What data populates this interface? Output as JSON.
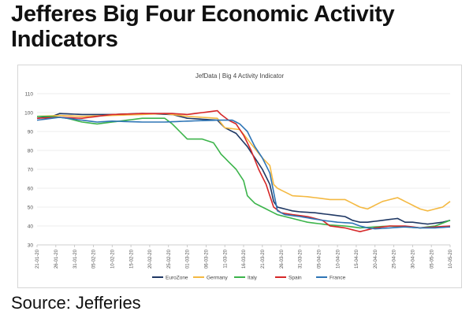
{
  "headline": "Jefferes Big Four Economic Activity Indicators",
  "source": "Source: Jefferies",
  "chart_data": {
    "type": "line",
    "title": "JefData | Big 4 Activity Indicator",
    "xlabel": "",
    "ylabel": "",
    "ylim": [
      30,
      110
    ],
    "yticks": [
      30,
      40,
      50,
      60,
      70,
      80,
      90,
      100,
      110
    ],
    "grid": true,
    "legend_position": "bottom",
    "x": [
      "21-01-20",
      "22-01-20",
      "23-01-20",
      "24-01-20",
      "25-01-20",
      "26-01-20",
      "27-01-20",
      "28-01-20",
      "29-01-20",
      "30-01-20",
      "31-01-20",
      "01-02-20",
      "02-02-20",
      "03-02-20",
      "04-02-20",
      "05-02-20",
      "06-02-20",
      "07-02-20",
      "08-02-20",
      "09-02-20",
      "10-02-20",
      "11-02-20",
      "12-02-20",
      "13-02-20",
      "14-02-20",
      "15-02-20",
      "16-02-20",
      "17-02-20",
      "18-02-20",
      "19-02-20",
      "20-02-20",
      "21-02-20",
      "22-02-20",
      "23-02-20",
      "24-02-20",
      "25-02-20",
      "26-02-20",
      "27-02-20",
      "28-02-20",
      "29-02-20",
      "01-03-20",
      "02-03-20",
      "03-03-20",
      "04-03-20",
      "05-03-20",
      "06-03-20",
      "07-03-20",
      "08-03-20",
      "09-03-20",
      "10-03-20",
      "11-03-20",
      "12-03-20",
      "13-03-20",
      "14-03-20",
      "15-03-20",
      "16-03-20",
      "17-03-20",
      "18-03-20",
      "19-03-20",
      "20-03-20",
      "21-03-20",
      "22-03-20",
      "23-03-20",
      "24-03-20",
      "25-03-20",
      "26-03-20",
      "27-03-20",
      "28-03-20",
      "29-03-20",
      "30-03-20",
      "31-03-20",
      "01-04-20",
      "02-04-20",
      "03-04-20",
      "04-04-20",
      "05-04-20",
      "06-04-20",
      "07-04-20",
      "08-04-20",
      "09-04-20",
      "10-04-20",
      "11-04-20",
      "12-04-20",
      "13-04-20",
      "14-04-20",
      "15-04-20",
      "16-04-20",
      "17-04-20",
      "18-04-20",
      "19-04-20",
      "20-04-20",
      "21-04-20",
      "22-04-20",
      "23-04-20",
      "24-04-20",
      "25-04-20",
      "26-04-20",
      "27-04-20",
      "28-04-20",
      "29-04-20",
      "30-04-20",
      "01-05-20",
      "02-05-20",
      "03-05-20",
      "04-05-20",
      "05-05-20",
      "06-05-20",
      "07-05-20",
      "08-05-20",
      "09-05-20",
      "10-05-20"
    ],
    "xticks": [
      "21-01-20",
      "26-01-20",
      "31-01-20",
      "05-02-20",
      "10-02-20",
      "15-02-20",
      "20-02-20",
      "25-02-20",
      "01-03-20",
      "06-03-20",
      "11-03-20",
      "16-03-20",
      "21-03-20",
      "26-03-20",
      "31-03-20",
      "05-04-20",
      "10-04-20",
      "15-04-20",
      "20-04-20",
      "25-04-20",
      "30-04-20",
      "05-05-20",
      "10-05-20"
    ],
    "series": [
      {
        "name": "EuroZone",
        "color": "#1f3864",
        "keypoints": [
          [
            0,
            97
          ],
          [
            4,
            98
          ],
          [
            6,
            99.5
          ],
          [
            12,
            99
          ],
          [
            20,
            99
          ],
          [
            28,
            99.5
          ],
          [
            36,
            99
          ],
          [
            40,
            97
          ],
          [
            48,
            96
          ],
          [
            50,
            92
          ],
          [
            53,
            89
          ],
          [
            56,
            82
          ],
          [
            60,
            70
          ],
          [
            62,
            62
          ],
          [
            63,
            53
          ],
          [
            64,
            50
          ],
          [
            66,
            49
          ],
          [
            68,
            48
          ],
          [
            70,
            47.5
          ],
          [
            74,
            47
          ],
          [
            78,
            46
          ],
          [
            82,
            45
          ],
          [
            84,
            43
          ],
          [
            86,
            42
          ],
          [
            88,
            42
          ],
          [
            92,
            43
          ],
          [
            96,
            44
          ],
          [
            98,
            42
          ],
          [
            100,
            42
          ],
          [
            104,
            41
          ],
          [
            108,
            42
          ],
          [
            110,
            43
          ]
        ]
      },
      {
        "name": "Germany",
        "color": "#f4b942",
        "keypoints": [
          [
            0,
            98
          ],
          [
            6,
            98.5
          ],
          [
            12,
            98
          ],
          [
            20,
            98.5
          ],
          [
            28,
            99
          ],
          [
            34,
            99.5
          ],
          [
            40,
            98
          ],
          [
            48,
            97
          ],
          [
            50,
            92
          ],
          [
            54,
            91
          ],
          [
            56,
            86
          ],
          [
            60,
            76
          ],
          [
            62,
            72
          ],
          [
            63,
            62
          ],
          [
            64,
            60
          ],
          [
            66,
            58
          ],
          [
            68,
            56
          ],
          [
            72,
            55.5
          ],
          [
            78,
            54
          ],
          [
            82,
            54
          ],
          [
            84,
            52
          ],
          [
            86,
            50
          ],
          [
            88,
            49
          ],
          [
            90,
            51
          ],
          [
            92,
            53
          ],
          [
            94,
            54
          ],
          [
            96,
            55
          ],
          [
            98,
            53
          ],
          [
            100,
            51
          ],
          [
            102,
            49
          ],
          [
            104,
            48
          ],
          [
            106,
            49
          ],
          [
            108,
            50
          ],
          [
            110,
            53
          ]
        ]
      },
      {
        "name": "Italy",
        "color": "#3cb44b",
        "keypoints": [
          [
            0,
            98
          ],
          [
            4,
            98
          ],
          [
            8,
            97
          ],
          [
            12,
            95
          ],
          [
            16,
            94
          ],
          [
            20,
            95
          ],
          [
            28,
            97
          ],
          [
            34,
            97
          ],
          [
            36,
            94
          ],
          [
            38,
            90
          ],
          [
            40,
            86
          ],
          [
            44,
            86
          ],
          [
            47,
            84
          ],
          [
            49,
            78
          ],
          [
            51,
            74
          ],
          [
            53,
            70
          ],
          [
            55,
            64
          ],
          [
            56,
            56
          ],
          [
            58,
            52
          ],
          [
            60,
            50
          ],
          [
            62,
            48
          ],
          [
            64,
            46
          ],
          [
            68,
            44
          ],
          [
            72,
            42
          ],
          [
            78,
            40.5
          ],
          [
            82,
            40
          ],
          [
            86,
            39
          ],
          [
            90,
            39.5
          ],
          [
            94,
            40
          ],
          [
            98,
            39.5
          ],
          [
            102,
            39
          ],
          [
            106,
            40
          ],
          [
            110,
            43
          ]
        ]
      },
      {
        "name": "Spain",
        "color": "#d62728",
        "keypoints": [
          [
            0,
            97
          ],
          [
            6,
            97.5
          ],
          [
            12,
            97
          ],
          [
            16,
            98
          ],
          [
            20,
            99
          ],
          [
            28,
            99.5
          ],
          [
            36,
            99.5
          ],
          [
            40,
            99
          ],
          [
            44,
            100
          ],
          [
            48,
            101
          ],
          [
            49,
            99
          ],
          [
            51,
            96
          ],
          [
            53,
            94
          ],
          [
            55,
            88
          ],
          [
            57,
            80
          ],
          [
            59,
            70
          ],
          [
            61,
            62
          ],
          [
            63,
            50
          ],
          [
            65,
            47
          ],
          [
            68,
            46
          ],
          [
            72,
            45
          ],
          [
            76,
            43
          ],
          [
            78,
            40
          ],
          [
            82,
            39
          ],
          [
            84,
            38
          ],
          [
            86,
            37
          ],
          [
            88,
            38
          ],
          [
            90,
            39
          ],
          [
            94,
            40
          ],
          [
            98,
            40
          ],
          [
            102,
            39
          ],
          [
            106,
            39.5
          ],
          [
            110,
            40
          ]
        ]
      },
      {
        "name": "France",
        "color": "#2e75b6",
        "keypoints": [
          [
            0,
            96
          ],
          [
            6,
            97.5
          ],
          [
            12,
            96
          ],
          [
            16,
            95
          ],
          [
            20,
            95.5
          ],
          [
            28,
            95
          ],
          [
            34,
            95
          ],
          [
            40,
            95.5
          ],
          [
            48,
            96
          ],
          [
            52,
            96
          ],
          [
            54,
            94
          ],
          [
            56,
            90
          ],
          [
            58,
            82
          ],
          [
            60,
            76
          ],
          [
            62,
            68
          ],
          [
            63,
            58
          ],
          [
            64,
            48
          ],
          [
            66,
            46
          ],
          [
            70,
            45
          ],
          [
            76,
            43
          ],
          [
            80,
            42
          ],
          [
            84,
            41.5
          ],
          [
            86,
            40
          ],
          [
            88,
            39
          ],
          [
            90,
            38.5
          ],
          [
            94,
            39
          ],
          [
            98,
            39.5
          ],
          [
            102,
            39
          ],
          [
            106,
            39
          ],
          [
            110,
            39.5
          ]
        ]
      }
    ]
  }
}
